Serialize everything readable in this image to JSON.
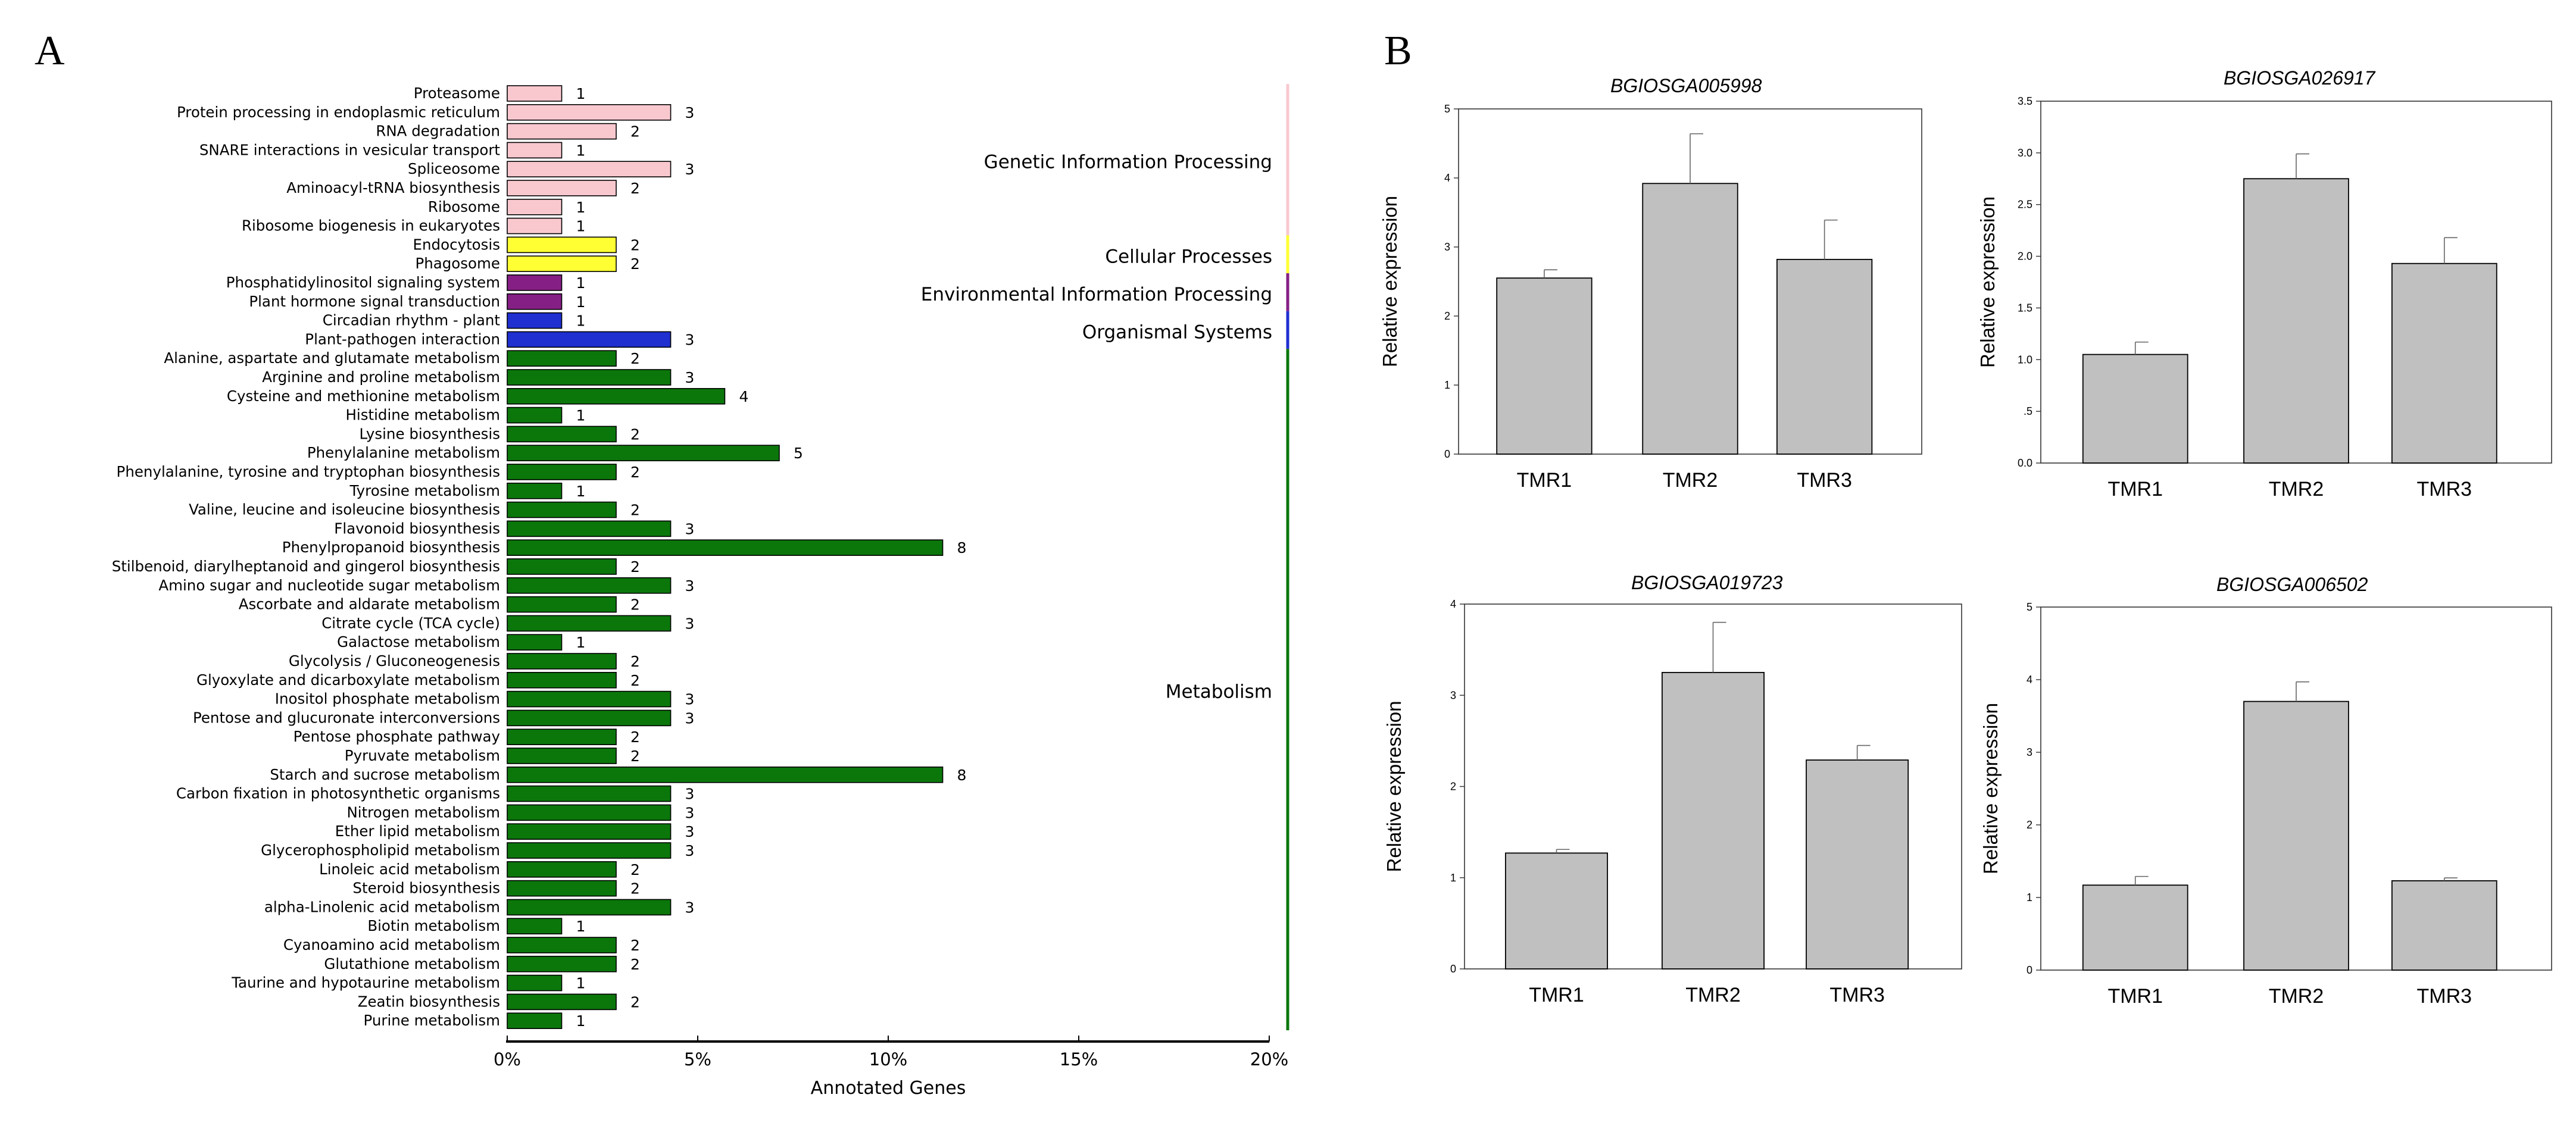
{
  "panel_labels": {
    "a": "A",
    "b": "B"
  },
  "colors": {
    "genetic": "#f9c8cf",
    "cellular": "#ffff33",
    "environmental": "#851f85",
    "organismal": "#1f2fd0",
    "metabolism": "#0b770b",
    "qpcr_bar": "#c0c0c0"
  },
  "chart_data": [
    {
      "type": "bar",
      "orientation": "horizontal",
      "title": "",
      "xlabel": "Annotated Genes",
      "ylabel": "",
      "xlim": [
        0,
        20
      ],
      "xticks": [
        "0%",
        "5%",
        "10%",
        "15%",
        "20%"
      ],
      "value_unit": "percent of annotated genes",
      "categories": [
        {
          "name": "Proteasome",
          "count": "1",
          "value": 1.43,
          "group": "genetic"
        },
        {
          "name": "Protein processing in endoplasmic reticulum",
          "count": "3",
          "value": 4.29,
          "group": "genetic"
        },
        {
          "name": "RNA degradation",
          "count": "2",
          "value": 2.86,
          "group": "genetic"
        },
        {
          "name": "SNARE interactions in vesicular transport",
          "count": "1",
          "value": 1.43,
          "group": "genetic"
        },
        {
          "name": "Spliceosome",
          "count": "3",
          "value": 4.29,
          "group": "genetic"
        },
        {
          "name": "Aminoacyl-tRNA biosynthesis",
          "count": "2",
          "value": 2.86,
          "group": "genetic"
        },
        {
          "name": "Ribosome",
          "count": "1",
          "value": 1.43,
          "group": "genetic"
        },
        {
          "name": "Ribosome biogenesis in eukaryotes",
          "count": "1",
          "value": 1.43,
          "group": "genetic"
        },
        {
          "name": "Endocytosis",
          "count": "2",
          "value": 2.86,
          "group": "cellular"
        },
        {
          "name": "Phagosome",
          "count": "2",
          "value": 2.86,
          "group": "cellular"
        },
        {
          "name": "Phosphatidylinositol signaling system",
          "count": "1",
          "value": 1.43,
          "group": "environmental"
        },
        {
          "name": "Plant hormone signal transduction",
          "count": "1",
          "value": 1.43,
          "group": "environmental"
        },
        {
          "name": "Circadian rhythm - plant",
          "count": "1",
          "value": 1.43,
          "group": "organismal"
        },
        {
          "name": "Plant-pathogen interaction",
          "count": "3",
          "value": 4.29,
          "group": "organismal"
        },
        {
          "name": "Alanine, aspartate and glutamate metabolism",
          "count": "2",
          "value": 2.86,
          "group": "metabolism"
        },
        {
          "name": "Arginine and proline metabolism",
          "count": "3",
          "value": 4.29,
          "group": "metabolism"
        },
        {
          "name": "Cysteine and methionine metabolism",
          "count": "4",
          "value": 5.71,
          "group": "metabolism"
        },
        {
          "name": "Histidine metabolism",
          "count": "1",
          "value": 1.43,
          "group": "metabolism"
        },
        {
          "name": "Lysine biosynthesis",
          "count": "2",
          "value": 2.86,
          "group": "metabolism"
        },
        {
          "name": "Phenylalanine metabolism",
          "count": "5",
          "value": 7.14,
          "group": "metabolism"
        },
        {
          "name": "Phenylalanine, tyrosine and tryptophan biosynthesis",
          "count": "2",
          "value": 2.86,
          "group": "metabolism"
        },
        {
          "name": "Tyrosine metabolism",
          "count": "1",
          "value": 1.43,
          "group": "metabolism"
        },
        {
          "name": "Valine, leucine and isoleucine biosynthesis",
          "count": "2",
          "value": 2.86,
          "group": "metabolism"
        },
        {
          "name": "Flavonoid biosynthesis",
          "count": "3",
          "value": 4.29,
          "group": "metabolism"
        },
        {
          "name": "Phenylpropanoid biosynthesis",
          "count": "8",
          "value": 11.43,
          "group": "metabolism"
        },
        {
          "name": "Stilbenoid, diarylheptanoid and gingerol biosynthesis",
          "count": "2",
          "value": 2.86,
          "group": "metabolism"
        },
        {
          "name": "Amino sugar and nucleotide sugar metabolism",
          "count": "3",
          "value": 4.29,
          "group": "metabolism"
        },
        {
          "name": "Ascorbate and aldarate metabolism",
          "count": "2",
          "value": 2.86,
          "group": "metabolism"
        },
        {
          "name": "Citrate cycle (TCA cycle)",
          "count": "3",
          "value": 4.29,
          "group": "metabolism"
        },
        {
          "name": "Galactose metabolism",
          "count": "1",
          "value": 1.43,
          "group": "metabolism"
        },
        {
          "name": "Glycolysis / Gluconeogenesis",
          "count": "2",
          "value": 2.86,
          "group": "metabolism"
        },
        {
          "name": "Glyoxylate and dicarboxylate metabolism",
          "count": "2",
          "value": 2.86,
          "group": "metabolism"
        },
        {
          "name": "Inositol phosphate metabolism",
          "count": "3",
          "value": 4.29,
          "group": "metabolism"
        },
        {
          "name": "Pentose and glucuronate interconversions",
          "count": "3",
          "value": 4.29,
          "group": "metabolism"
        },
        {
          "name": "Pentose phosphate pathway",
          "count": "2",
          "value": 2.86,
          "group": "metabolism"
        },
        {
          "name": "Pyruvate metabolism",
          "count": "2",
          "value": 2.86,
          "group": "metabolism"
        },
        {
          "name": "Starch and sucrose metabolism",
          "count": "8",
          "value": 11.43,
          "group": "metabolism"
        },
        {
          "name": "Carbon fixation in photosynthetic organisms",
          "count": "3",
          "value": 4.29,
          "group": "metabolism"
        },
        {
          "name": "Nitrogen metabolism",
          "count": "3",
          "value": 4.29,
          "group": "metabolism"
        },
        {
          "name": "Ether lipid metabolism",
          "count": "3",
          "value": 4.29,
          "group": "metabolism"
        },
        {
          "name": "Glycerophospholipid metabolism",
          "count": "3",
          "value": 4.29,
          "group": "metabolism"
        },
        {
          "name": "Linoleic acid metabolism",
          "count": "2",
          "value": 2.86,
          "group": "metabolism"
        },
        {
          "name": "Steroid biosynthesis",
          "count": "2",
          "value": 2.86,
          "group": "metabolism"
        },
        {
          "name": "alpha-Linolenic acid metabolism",
          "count": "3",
          "value": 4.29,
          "group": "metabolism"
        },
        {
          "name": "Biotin metabolism",
          "count": "1",
          "value": 1.43,
          "group": "metabolism"
        },
        {
          "name": "Cyanoamino acid metabolism",
          "count": "2",
          "value": 2.86,
          "group": "metabolism"
        },
        {
          "name": "Glutathione metabolism",
          "count": "2",
          "value": 2.86,
          "group": "metabolism"
        },
        {
          "name": "Taurine and hypotaurine metabolism",
          "count": "1",
          "value": 1.43,
          "group": "metabolism"
        },
        {
          "name": "Zeatin biosynthesis",
          "count": "2",
          "value": 2.86,
          "group": "metabolism"
        },
        {
          "name": "Purine metabolism",
          "count": "1",
          "value": 1.43,
          "group": "metabolism"
        }
      ],
      "groups": [
        {
          "key": "genetic",
          "label": "Genetic Information Processing"
        },
        {
          "key": "cellular",
          "label": "Cellular Processes"
        },
        {
          "key": "environmental",
          "label": "Environmental Information Processing"
        },
        {
          "key": "organismal",
          "label": "Organismal Systems"
        },
        {
          "key": "metabolism",
          "label": "Metabolism"
        }
      ]
    },
    {
      "type": "bar",
      "title": "BGIOSGA005998",
      "ylabel": "Relative expression",
      "categories": [
        "TMR1",
        "TMR2",
        "TMR3"
      ],
      "values": [
        2.55,
        3.92,
        2.82
      ],
      "errors": [
        0.12,
        0.72,
        0.57
      ],
      "ylim": [
        0,
        5
      ],
      "yticks": [
        "0",
        "1",
        "2",
        "3",
        "4",
        "5"
      ]
    },
    {
      "type": "bar",
      "title": "BGIOSGA026917",
      "ylabel": "Relative expression",
      "categories": [
        "TMR1",
        "TMR2",
        "TMR3"
      ],
      "values": [
        1.05,
        2.75,
        1.93
      ],
      "errors": [
        0.12,
        0.24,
        0.25
      ],
      "ylim": [
        0,
        3.5
      ],
      "yticks": [
        "0.0",
        ".5",
        "1.0",
        "1.5",
        "2.0",
        "2.5",
        "3.0",
        "3.5"
      ]
    },
    {
      "type": "bar",
      "title": "BGIOSGA019723",
      "ylabel": "Relative expression",
      "categories": [
        "TMR1",
        "TMR2",
        "TMR3"
      ],
      "values": [
        1.27,
        3.25,
        2.29
      ],
      "errors": [
        0.04,
        0.55,
        0.16
      ],
      "ylim": [
        0,
        4
      ],
      "yticks": [
        "0",
        "1",
        "2",
        "3",
        "4"
      ]
    },
    {
      "type": "bar",
      "title": "BGIOSGA006502",
      "ylabel": "Relative expression",
      "categories": [
        "TMR1",
        "TMR2",
        "TMR3"
      ],
      "values": [
        1.17,
        3.7,
        1.23
      ],
      "errors": [
        0.12,
        0.27,
        0.04
      ],
      "ylim": [
        0,
        5
      ],
      "yticks": [
        "0",
        "1",
        "2",
        "3",
        "4",
        "5"
      ]
    }
  ]
}
